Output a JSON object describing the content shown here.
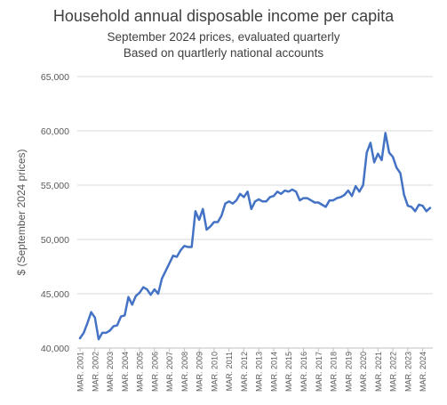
{
  "chart_data": {
    "type": "line",
    "title": "Household annual disposable income per capita",
    "subtitle_lines": [
      "September 2024 prices, evaluated quarterly",
      "Based on quartlerly national accounts"
    ],
    "xlabel": "",
    "ylabel": "$ (September  2024 prices)",
    "ylim": [
      40000,
      65000
    ],
    "yticks": [
      40000,
      45000,
      50000,
      55000,
      60000,
      65000
    ],
    "ytick_labels": [
      "40,000",
      "45,000",
      "50,000",
      "55,000",
      "60,000",
      "65,000"
    ],
    "grid": "horizontal",
    "legend": "none",
    "line_color": "#4472C4",
    "x_tick_labels": [
      "MAR. 2001",
      "MAR. 2002",
      "MAR. 2003",
      "MAR. 2004",
      "MAR. 2005",
      "MAR. 2006",
      "MAR. 2007",
      "MAR. 2008",
      "MAR. 2009",
      "MAR. 2010",
      "MAR. 2011",
      "MAR. 2012",
      "MAR. 2013",
      "MAR. 2014",
      "MAR. 2015",
      "MAR. 2016",
      "MAR. 2017",
      "MAR. 2018",
      "MAR. 2019",
      "MAR. 2020",
      "MAR. 2021",
      "MAR. 2022",
      "MAR. 2023",
      "MAR. 2024"
    ],
    "x_start": "Mar 2001",
    "x_step": "quarter",
    "series": [
      {
        "values": [
          40900,
          41400,
          42300,
          43300,
          42800,
          40800,
          41400,
          41400,
          41600,
          42000,
          42100,
          42900,
          43000,
          44700,
          44000,
          44800,
          45100,
          45600,
          45400,
          44900,
          45400,
          45000,
          46400,
          47100,
          47800,
          48500,
          48400,
          49000,
          49400,
          49300,
          49300,
          52600,
          51800,
          52800,
          50900,
          51200,
          51600,
          51600,
          52200,
          53300,
          53500,
          53300,
          53600,
          54200,
          53900,
          54400,
          52800,
          53500,
          53700,
          53500,
          53500,
          53900,
          54000,
          54400,
          54200,
          54500,
          54400,
          54600,
          54400,
          53600,
          53800,
          53800,
          53600,
          53400,
          53400,
          53200,
          53000,
          53600,
          53600,
          53800,
          53900,
          54100,
          54500,
          54000,
          54900,
          54400,
          55000,
          58000,
          58900,
          57100,
          57900,
          57300,
          59800,
          58000,
          57600,
          56600,
          56100,
          54100,
          53100,
          53000,
          52600,
          53200,
          53100,
          52600,
          52900
        ]
      }
    ]
  }
}
